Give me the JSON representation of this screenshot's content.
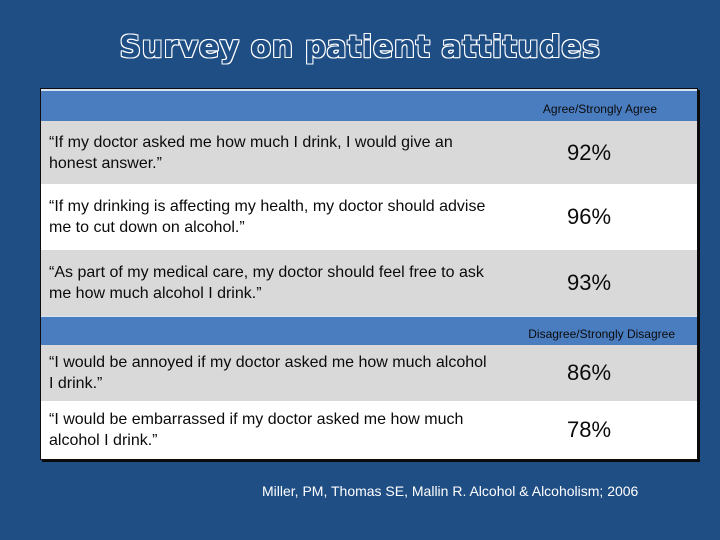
{
  "slide": {
    "title": "Survey on patient attitudes",
    "citation": "Miller, PM, Thomas SE, Mallin R. Alcohol & Alcoholism; 2006"
  },
  "table": {
    "header_agree": "Agree/Strongly Agree",
    "header_disagree": "Disagree/Strongly Disagree",
    "agree_rows": [
      {
        "statement": "“If my doctor asked me how much I drink, I would give an honest answer.”",
        "value": "92%"
      },
      {
        "statement": "“If my drinking is affecting my health, my doctor should advise me to cut down on alcohol.”",
        "value": "96%"
      },
      {
        "statement": "“As part of my medical care, my doctor should feel free to ask me how much alcohol I drink.”",
        "value": "93%"
      }
    ],
    "disagree_rows": [
      {
        "statement": "“I would be annoyed if my doctor asked me how much alcohol I drink.”",
        "value": "86%"
      },
      {
        "statement": "“I would be embarrassed if my doctor asked me how much alcohol I drink.”",
        "value": "78%"
      }
    ]
  },
  "colors": {
    "background": "#1f4e85",
    "header_band": "#4a7dc0",
    "row_gray": "#d9d9d9",
    "row_white": "#ffffff"
  }
}
